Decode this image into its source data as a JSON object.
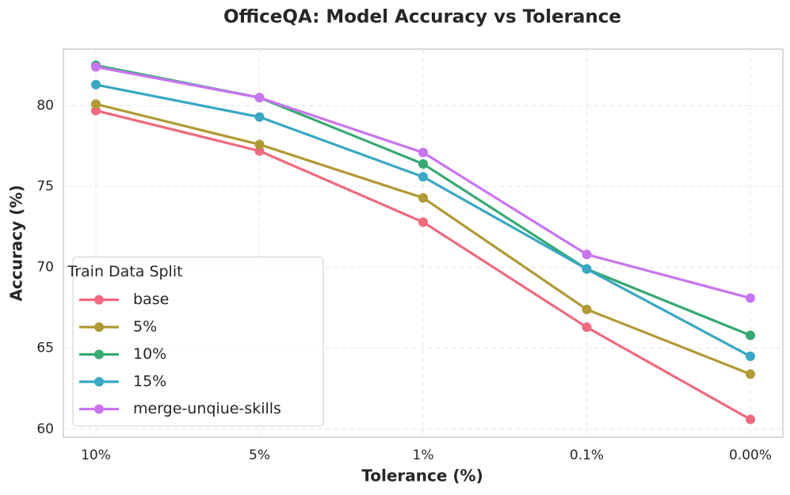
{
  "chart_data": {
    "type": "line",
    "title": "OfficeQA: Model Accuracy vs Tolerance",
    "x_label": "Tolerance (%)",
    "y_label": "Accuracy (%)",
    "categories": [
      "10%",
      "5%",
      "1%",
      "0.1%",
      "0.00%"
    ],
    "series": [
      {
        "name": "base",
        "color": "#f0697e",
        "values": [
          79.7,
          77.2,
          72.8,
          66.3,
          60.6
        ]
      },
      {
        "name": "5%",
        "color": "#b19a34",
        "values": [
          80.1,
          77.6,
          74.3,
          67.4,
          63.4
        ]
      },
      {
        "name": "10%",
        "color": "#35aa72",
        "values": [
          82.5,
          80.5,
          76.4,
          69.9,
          65.8
        ]
      },
      {
        "name": "15%",
        "color": "#38a8c4",
        "values": [
          81.3,
          79.3,
          75.6,
          69.9,
          64.5
        ]
      },
      {
        "name": "merge-unqiue-skills",
        "color": "#c974f2",
        "values": [
          82.4,
          80.5,
          77.1,
          70.8,
          68.1
        ]
      }
    ],
    "ylim": [
      59.5,
      83.5
    ],
    "yticks": [
      60,
      65,
      70,
      75,
      80
    ],
    "grid": true,
    "legend_title": "Train Data Split",
    "legend_position": "lower left"
  }
}
